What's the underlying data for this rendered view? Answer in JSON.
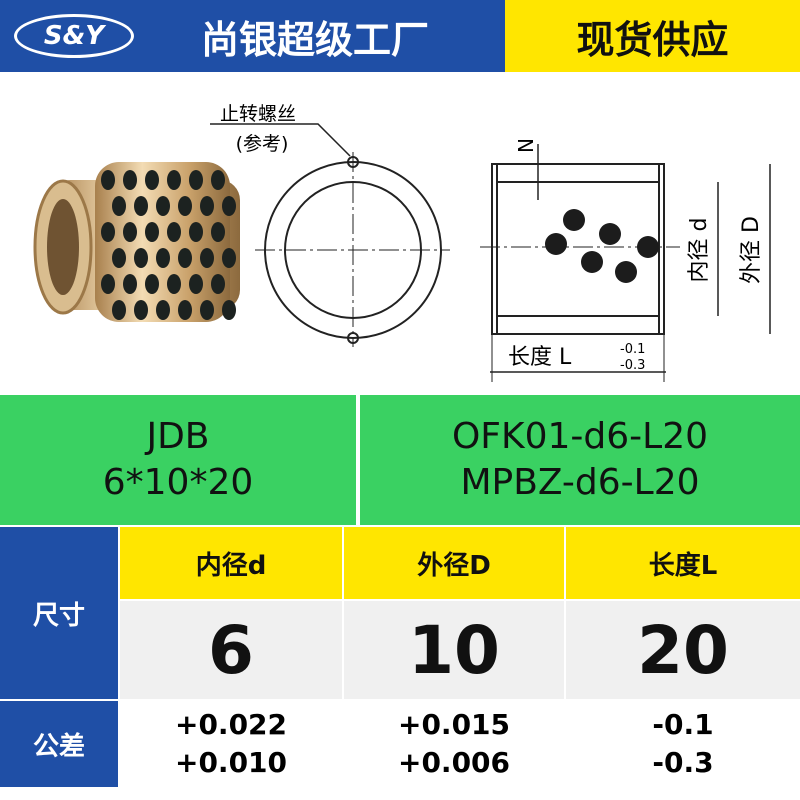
{
  "header": {
    "logo": "S&Y",
    "brand": "尚银超级工厂",
    "badge": "现货供应"
  },
  "diagram": {
    "screw_label": "止转螺丝",
    "screw_note": "(参考)",
    "n_label": "N",
    "inner_label": "内径 d",
    "outer_label": "外径 D",
    "length_label": "长度 L",
    "length_tol_upper": "-0.1",
    "length_tol_lower": "-0.3"
  },
  "models": {
    "left": [
      "JDB",
      "6*10*20"
    ],
    "right": [
      "OFK01-d6-L20",
      "MPBZ-d6-L20"
    ]
  },
  "table": {
    "size_label": "尺寸",
    "tolerance_label": "公差",
    "headers": [
      "内径d",
      "外径D",
      "长度L"
    ],
    "sizes": [
      6,
      10,
      20
    ],
    "tolerances": [
      [
        "+0.022",
        "+0.010"
      ],
      [
        "+0.015",
        "+0.006"
      ],
      [
        "-0.1",
        "-0.3"
      ]
    ]
  }
}
